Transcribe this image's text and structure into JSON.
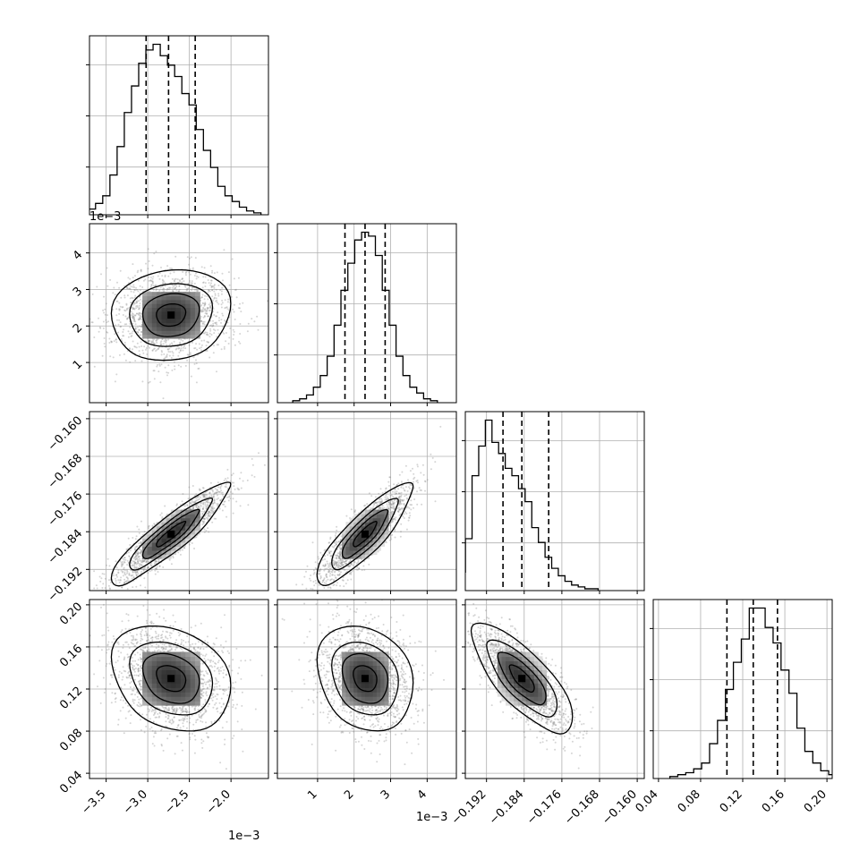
{
  "chart_data": {
    "type": "corner",
    "grid": true,
    "parameters": [
      {
        "range": [
          -3.7,
          -1.55
        ],
        "ticks": [
          -3.5,
          -3.0,
          -2.5,
          -2.0
        ],
        "tick_labels": [
          "−3.5",
          "−3.0",
          "−2.5",
          "−2.0"
        ],
        "offset_label": "1e−3",
        "quantiles": [
          -3.02,
          -2.75,
          -2.43
        ],
        "mean": -2.72,
        "sd": 0.3,
        "hist": [
          1,
          3,
          6,
          10,
          21,
          36,
          54,
          68,
          80,
          87,
          90,
          84,
          79,
          73,
          64,
          58,
          45,
          34,
          25,
          15,
          10,
          7,
          4,
          2,
          1
        ]
      },
      {
        "range": [
          -0.1,
          4.8
        ],
        "ticks": [
          1,
          2,
          3,
          4
        ],
        "tick_labels": [
          "1",
          "2",
          "3",
          "4"
        ],
        "offset_label": "1e−3",
        "quantiles": [
          1.75,
          2.3,
          2.85
        ],
        "mean": 2.3,
        "sd": 0.55,
        "hist": [
          1,
          2,
          4,
          8,
          14,
          24,
          40,
          58,
          72,
          84,
          88,
          86,
          76,
          58,
          40,
          24,
          14,
          8,
          5,
          2,
          1
        ]
      },
      {
        "range": [
          -0.1965,
          -0.1585
        ],
        "ticks": [
          -0.192,
          -0.184,
          -0.176,
          -0.168,
          -0.16
        ],
        "tick_labels": [
          "−0.192",
          "−0.184",
          "−0.176",
          "−0.168",
          "−0.160"
        ],
        "quantiles": [
          -0.1885,
          -0.1845,
          -0.1788
        ],
        "mean": -0.1845,
        "sd": 0.0045,
        "hist": [
          2,
          5,
          10,
          28,
          62,
          78,
          92,
          80,
          74,
          66,
          62,
          55,
          48,
          34,
          26,
          18,
          12,
          8,
          5,
          3,
          2,
          1,
          1
        ]
      },
      {
        "range": [
          0.035,
          0.205
        ],
        "ticks": [
          0.04,
          0.08,
          0.12,
          0.16,
          0.2
        ],
        "tick_labels": [
          "0.04",
          "0.08",
          "0.12",
          "0.16",
          "0.20"
        ],
        "quantiles": [
          0.105,
          0.13,
          0.153
        ],
        "mean": 0.13,
        "sd": 0.022,
        "hist": [
          1,
          2,
          3,
          5,
          8,
          18,
          30,
          46,
          60,
          72,
          88,
          88,
          78,
          70,
          56,
          44,
          26,
          14,
          8,
          4,
          2
        ]
      }
    ],
    "correlations": [
      [
        1,
        0.1,
        0.9,
        -0.25
      ],
      [
        0.1,
        1,
        0.85,
        -0.2
      ],
      [
        0.9,
        0.85,
        1,
        -0.75
      ],
      [
        -0.25,
        -0.2,
        -0.75,
        1
      ]
    ],
    "hist_y_ticks": [
      0.28,
      0.58,
      0.88
    ],
    "contour_levels": [
      0.88,
      0.62,
      0.36,
      0.12
    ]
  }
}
